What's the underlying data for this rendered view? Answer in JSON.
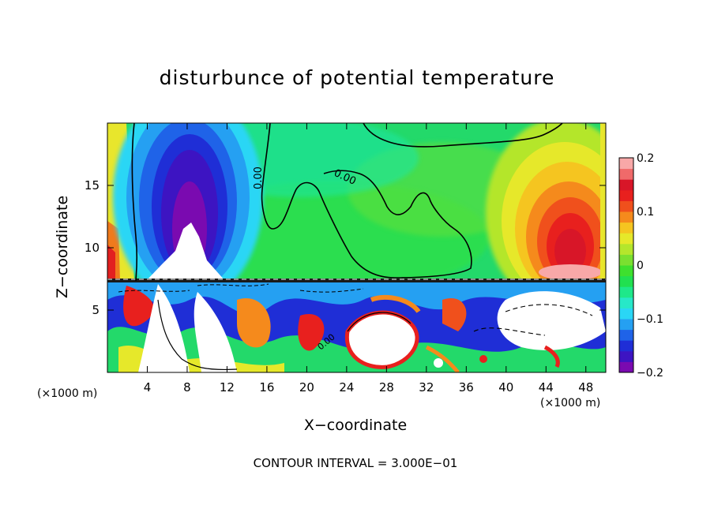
{
  "chart_data": {
    "type": "heatmap",
    "title": "disturbunce of potential temperature",
    "xlabel": "X−coordinate",
    "ylabel": "Z−coordinate",
    "x_unit_left": "(×1000 m)",
    "x_unit_right": "(×1000 m)",
    "x_ticks": [
      4,
      8,
      12,
      16,
      20,
      24,
      28,
      32,
      36,
      40,
      44,
      48
    ],
    "y_ticks": [
      5,
      10,
      15
    ],
    "xlim": [
      0,
      50
    ],
    "ylim": [
      0,
      20
    ],
    "colorbar": {
      "range": [
        -0.2,
        0.2
      ],
      "tick_labels": [
        "0.2",
        "0.1",
        "0",
        "−0.1",
        "−0.2"
      ],
      "tick_values": [
        0.2,
        0.1,
        0,
        -0.1,
        -0.2
      ],
      "colors": [
        "#7a0ab0",
        "#3d14c2",
        "#1f2ed6",
        "#1f63e8",
        "#25a0f2",
        "#2ad6f5",
        "#27e8c8",
        "#1ee88a",
        "#21e050",
        "#3ee02e",
        "#7ae030",
        "#b4e62c",
        "#e6e82a",
        "#f5c520",
        "#f58a1c",
        "#f0501c",
        "#e8201e",
        "#d81628",
        "#f06a6a",
        "#f8a8a8"
      ]
    },
    "contour_labels": [
      "0.00",
      "0.00",
      "0.00"
    ],
    "annotation": "CONTOUR INTERVAL = 3.000E−01",
    "features": [
      {
        "name": "cold anomaly",
        "x_center": 8,
        "z_center": 14,
        "value_min": -0.2
      },
      {
        "name": "warm anomaly",
        "x_center": 46,
        "z_center": 10,
        "value_max": 0.2
      },
      {
        "name": "turbulent layer",
        "z_range": [
          0,
          7.5
        ]
      }
    ]
  }
}
